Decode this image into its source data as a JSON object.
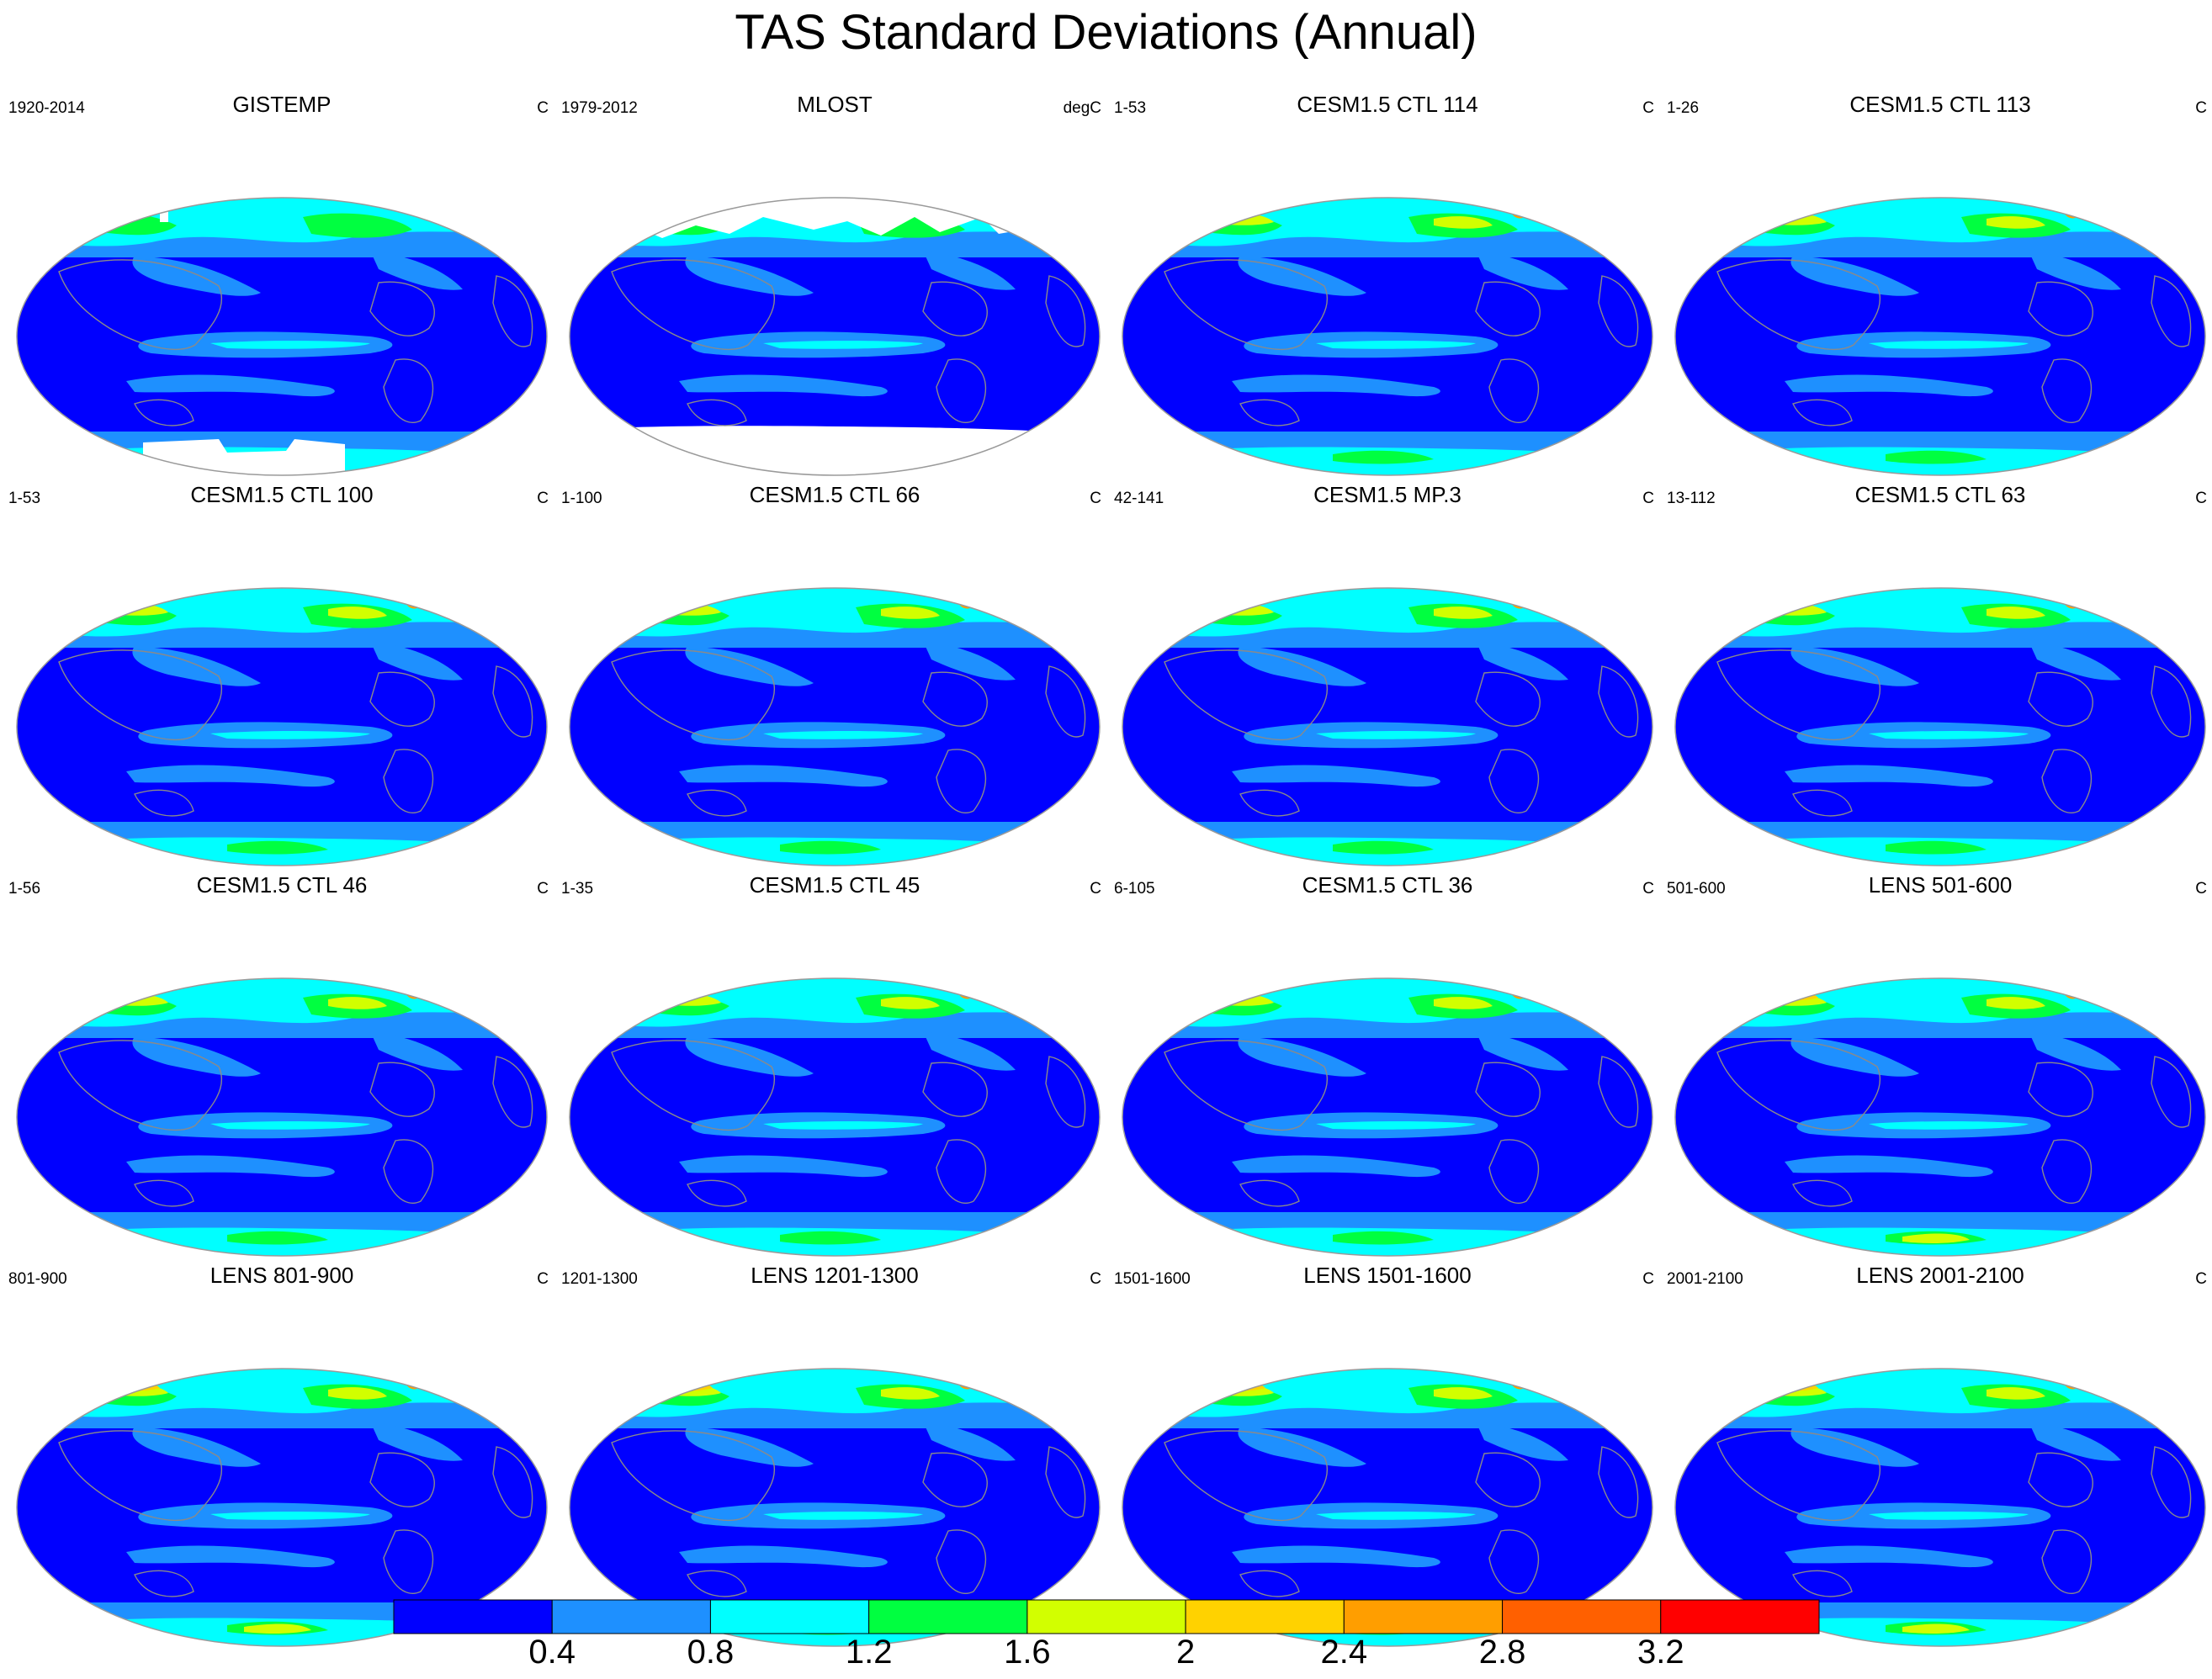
{
  "title": "TAS Standard Deviations (Annual)",
  "panels": [
    {
      "title": "GISTEMP",
      "left": "1920-2014",
      "right": "C",
      "variant": "gistemp"
    },
    {
      "title": "MLOST",
      "left": "1979-2012",
      "right": "degC",
      "variant": "mlost"
    },
    {
      "title": "CESM1.5 CTL 114",
      "left": "1-53",
      "right": "C",
      "variant": "model"
    },
    {
      "title": "CESM1.5 CTL 113",
      "left": "1-26",
      "right": "C",
      "variant": "model"
    },
    {
      "title": "CESM1.5 CTL 100",
      "left": "1-53",
      "right": "C",
      "variant": "model"
    },
    {
      "title": "CESM1.5 CTL 66",
      "left": "1-100",
      "right": "C",
      "variant": "model"
    },
    {
      "title": "CESM1.5 MP.3",
      "left": "42-141",
      "right": "C",
      "variant": "model"
    },
    {
      "title": "CESM1.5 CTL 63",
      "left": "13-112",
      "right": "C",
      "variant": "model"
    },
    {
      "title": "CESM1.5 CTL 46",
      "left": "1-56",
      "right": "C",
      "variant": "model"
    },
    {
      "title": "CESM1.5 CTL 45",
      "left": "1-35",
      "right": "C",
      "variant": "model"
    },
    {
      "title": "CESM1.5 CTL 36",
      "left": "6-105",
      "right": "C",
      "variant": "model"
    },
    {
      "title": "LENS 501-600",
      "left": "501-600",
      "right": "C",
      "variant": "lens"
    },
    {
      "title": "LENS 801-900",
      "left": "801-900",
      "right": "C",
      "variant": "lens"
    },
    {
      "title": "LENS 1201-1300",
      "left": "1201-1300",
      "right": "C",
      "variant": "lens"
    },
    {
      "title": "LENS 1501-1600",
      "left": "1501-1600",
      "right": "C",
      "variant": "lens"
    },
    {
      "title": "LENS 2001-2100",
      "left": "2001-2100",
      "right": "C",
      "variant": "lens"
    }
  ],
  "colorbar": {
    "colors": [
      "#0000ff",
      "#1e90ff",
      "#00ffff",
      "#00ff40",
      "#d2ff00",
      "#ffd200",
      "#ff9e00",
      "#ff6000",
      "#ff0000"
    ],
    "labels": [
      "0.4",
      "0.8",
      "1.2",
      "1.6",
      "2",
      "2.4",
      "2.8",
      "3.2"
    ]
  }
}
